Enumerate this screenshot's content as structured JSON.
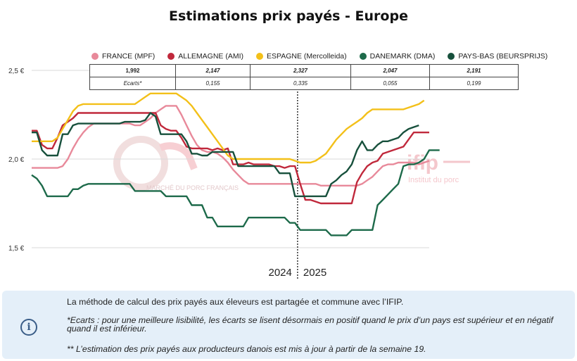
{
  "title": "Estimations prix payés - Europe",
  "legend": [
    {
      "label": "FRANCE (MPF)",
      "color": "#e8899a"
    },
    {
      "label": "ALLEMAGNE (AMI)",
      "color": "#c0283b"
    },
    {
      "label": "ESPAGNE (Mercolleida)",
      "color": "#f3c019"
    },
    {
      "label": "DANEMARK (DMA)",
      "color": "#1d6a4a"
    },
    {
      "label": "PAYS-BAS (BEURSPRIJS)",
      "color": "#17503c"
    }
  ],
  "value_table": {
    "row1": [
      "1,992",
      "2,147",
      "2,327",
      "2,047",
      "2,191"
    ],
    "row2_label": "Ecarts*",
    "row2": [
      "0,155",
      "0,335",
      "0,055",
      "0,199"
    ]
  },
  "watermarks": {
    "left": "MARCHÉ DU PORC FRANÇAIS",
    "right_logo": "ifip",
    "right_text": "Institut du porc"
  },
  "info": {
    "icon": "info-icon",
    "line1": "La méthode de calcul des prix payés aux éleveurs est partagée et commune avec l’IFIP.",
    "line2": "*Ecarts : pour une meilleure lisibilité, les écarts se lisent désormais en positif quand le prix d’un pays est supérieur et en négatif quand il est inférieur.",
    "line3": "** L’estimation des prix payés aux producteurs danois est mis à jour à partir de la semaine 19."
  },
  "chart_data": {
    "type": "line",
    "title": "Estimations prix payés - Europe",
    "xlabel": "",
    "ylabel": "",
    "ylim": [
      1.5,
      2.5
    ],
    "y_ticks": [
      "1,5 €",
      "2,0 €",
      "2,5 €"
    ],
    "year_labels": [
      "2024",
      "2025"
    ],
    "x_weeks_2024": [
      1,
      52
    ],
    "x_weeks_2025": [
      1,
      32
    ],
    "grid": true,
    "legend_position": "top",
    "series": [
      {
        "name": "FRANCE (MPF)",
        "color": "#e8899a",
        "values": [
          1.95,
          1.95,
          1.95,
          1.95,
          1.95,
          1.95,
          1.96,
          2.0,
          2.06,
          2.11,
          2.15,
          2.18,
          2.2,
          2.2,
          2.2,
          2.2,
          2.2,
          2.2,
          2.2,
          2.2,
          2.19,
          2.19,
          2.21,
          2.23,
          2.26,
          2.28,
          2.3,
          2.3,
          2.3,
          2.25,
          2.19,
          2.13,
          2.08,
          2.05,
          2.04,
          2.04,
          2.03,
          2.01,
          1.98,
          1.94,
          1.91,
          1.88,
          1.86,
          1.86,
          1.86,
          1.86,
          1.86,
          1.86,
          1.86,
          1.86,
          1.86,
          1.86,
          1.86,
          1.86,
          1.86,
          1.86,
          1.85,
          1.85,
          1.85,
          1.85,
          1.85,
          1.85,
          1.85,
          1.85,
          1.86,
          1.88,
          1.9,
          1.93,
          1.96,
          1.97,
          1.97,
          1.98,
          1.98,
          1.98,
          1.98,
          1.97,
          1.98,
          1.99
        ]
      },
      {
        "name": "ALLEMAGNE (AMI)",
        "color": "#c0283b",
        "values": [
          2.16,
          2.16,
          2.08,
          2.06,
          2.06,
          2.12,
          2.19,
          2.21,
          2.23,
          2.26,
          2.26,
          2.26,
          2.26,
          2.26,
          2.26,
          2.26,
          2.26,
          2.26,
          2.26,
          2.26,
          2.26,
          2.26,
          2.26,
          2.26,
          2.26,
          2.19,
          2.17,
          2.16,
          2.16,
          2.12,
          2.07,
          2.06,
          2.06,
          2.06,
          2.06,
          2.05,
          2.06,
          2.05,
          2.06,
          1.97,
          1.97,
          1.97,
          1.98,
          1.97,
          1.97,
          1.97,
          1.97,
          1.96,
          1.96,
          1.95,
          1.96,
          1.96,
          1.86,
          1.77,
          1.77,
          1.76,
          1.75,
          1.75,
          1.75,
          1.75,
          1.75,
          1.75,
          1.75,
          1.87,
          1.92,
          1.96,
          1.98,
          1.99,
          2.03,
          2.04,
          2.05,
          2.06,
          2.07,
          2.11,
          2.15,
          2.15,
          2.15,
          2.15
        ]
      },
      {
        "name": "ESPAGNE (Mercolleida)",
        "color": "#f3c019",
        "values": [
          2.1,
          2.1,
          2.1,
          2.1,
          2.1,
          2.12,
          2.17,
          2.22,
          2.27,
          2.3,
          2.31,
          2.31,
          2.31,
          2.31,
          2.31,
          2.31,
          2.31,
          2.31,
          2.31,
          2.31,
          2.31,
          2.33,
          2.35,
          2.37,
          2.37,
          2.37,
          2.37,
          2.37,
          2.37,
          2.35,
          2.33,
          2.3,
          2.26,
          2.22,
          2.18,
          2.14,
          2.1,
          2.06,
          2.02,
          2.0,
          2.0,
          2.0,
          2.0,
          2.0,
          2.0,
          2.0,
          2.0,
          2.0,
          2.0,
          2.0,
          2.0,
          1.99,
          1.98,
          1.98,
          1.98,
          1.99,
          2.01,
          2.03,
          2.07,
          2.11,
          2.14,
          2.17,
          2.19,
          2.21,
          2.23,
          2.26,
          2.28,
          2.28,
          2.28,
          2.28,
          2.28,
          2.28,
          2.28,
          2.29,
          2.3,
          2.31,
          2.33
        ]
      },
      {
        "name": "DANEMARK (DMA)",
        "color": "#1d6a4a",
        "values": [
          1.91,
          1.89,
          1.85,
          1.79,
          1.79,
          1.79,
          1.79,
          1.79,
          1.83,
          1.83,
          1.85,
          1.86,
          1.86,
          1.86,
          1.86,
          1.86,
          1.86,
          1.86,
          1.86,
          1.86,
          1.82,
          1.82,
          1.82,
          1.82,
          1.82,
          1.82,
          1.79,
          1.79,
          1.79,
          1.79,
          1.79,
          1.74,
          1.74,
          1.74,
          1.67,
          1.67,
          1.62,
          1.62,
          1.62,
          1.62,
          1.62,
          1.62,
          1.67,
          1.67,
          1.67,
          1.67,
          1.67,
          1.67,
          1.67,
          1.67,
          1.64,
          1.64,
          1.6,
          1.6,
          1.6,
          1.6,
          1.6,
          1.6,
          1.57,
          1.57,
          1.57,
          1.57,
          1.6,
          1.6,
          1.6,
          1.6,
          1.6,
          1.74,
          1.77,
          1.8,
          1.83,
          1.86,
          1.96,
          1.97,
          1.97,
          1.98,
          2.0,
          2.05,
          2.05,
          2.05
        ]
      },
      {
        "name": "PAYS-BAS (BEURSPRIJS)",
        "color": "#17503c",
        "values": [
          2.15,
          2.15,
          2.05,
          2.02,
          2.02,
          2.02,
          2.14,
          2.14,
          2.19,
          2.2,
          2.2,
          2.2,
          2.2,
          2.2,
          2.2,
          2.2,
          2.2,
          2.2,
          2.21,
          2.21,
          2.21,
          2.21,
          2.22,
          2.26,
          2.24,
          2.14,
          2.14,
          2.14,
          2.14,
          2.14,
          2.1,
          2.03,
          2.03,
          2.02,
          2.02,
          2.04,
          2.04,
          2.04,
          2.04,
          2.04,
          1.96,
          1.96,
          1.96,
          1.96,
          1.96,
          1.96,
          1.96,
          1.96,
          1.92,
          1.92,
          1.92,
          1.79,
          1.79,
          1.79,
          1.79,
          1.79,
          1.79,
          1.79,
          1.86,
          1.88,
          1.91,
          1.93,
          1.97,
          2.05,
          2.1,
          2.05,
          2.05,
          2.08,
          2.1,
          2.1,
          2.11,
          2.12,
          2.15,
          2.17,
          2.18,
          2.19
        ]
      }
    ]
  }
}
